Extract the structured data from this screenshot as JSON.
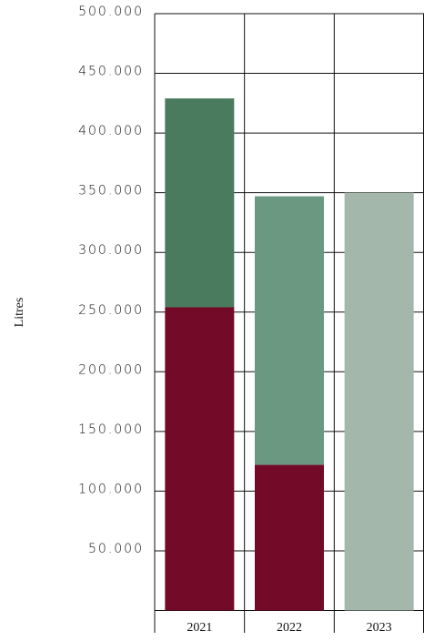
{
  "chart_data": {
    "type": "stacked_bar",
    "y_label": "Litres",
    "categories": [
      "2021",
      "2022",
      "2023"
    ],
    "series": [
      {
        "colors": [
          "#730a28",
          "#730a28",
          "#730a28"
        ],
        "values": [
          254000,
          122000,
          null
        ]
      },
      {
        "colors": [
          "#4a7b5e",
          "#6b9880",
          "#a3b8aa"
        ],
        "values": [
          175000,
          225000,
          350000
        ]
      }
    ],
    "ylim": [
      0,
      500000
    ],
    "yticks": [
      {
        "value": 50000,
        "label": "50.000"
      },
      {
        "value": 100000,
        "label": "100.000"
      },
      {
        "value": 150000,
        "label": "150.000"
      },
      {
        "value": 200000,
        "label": "200.000"
      },
      {
        "value": 250000,
        "label": "250.000"
      },
      {
        "value": 300000,
        "label": "300.000"
      },
      {
        "value": 350000,
        "label": "350.000"
      },
      {
        "value": 400000,
        "label": "400.000"
      },
      {
        "value": 450000,
        "label": "450.000"
      },
      {
        "value": 500000,
        "label": "500.000"
      }
    ],
    "grid": true
  }
}
